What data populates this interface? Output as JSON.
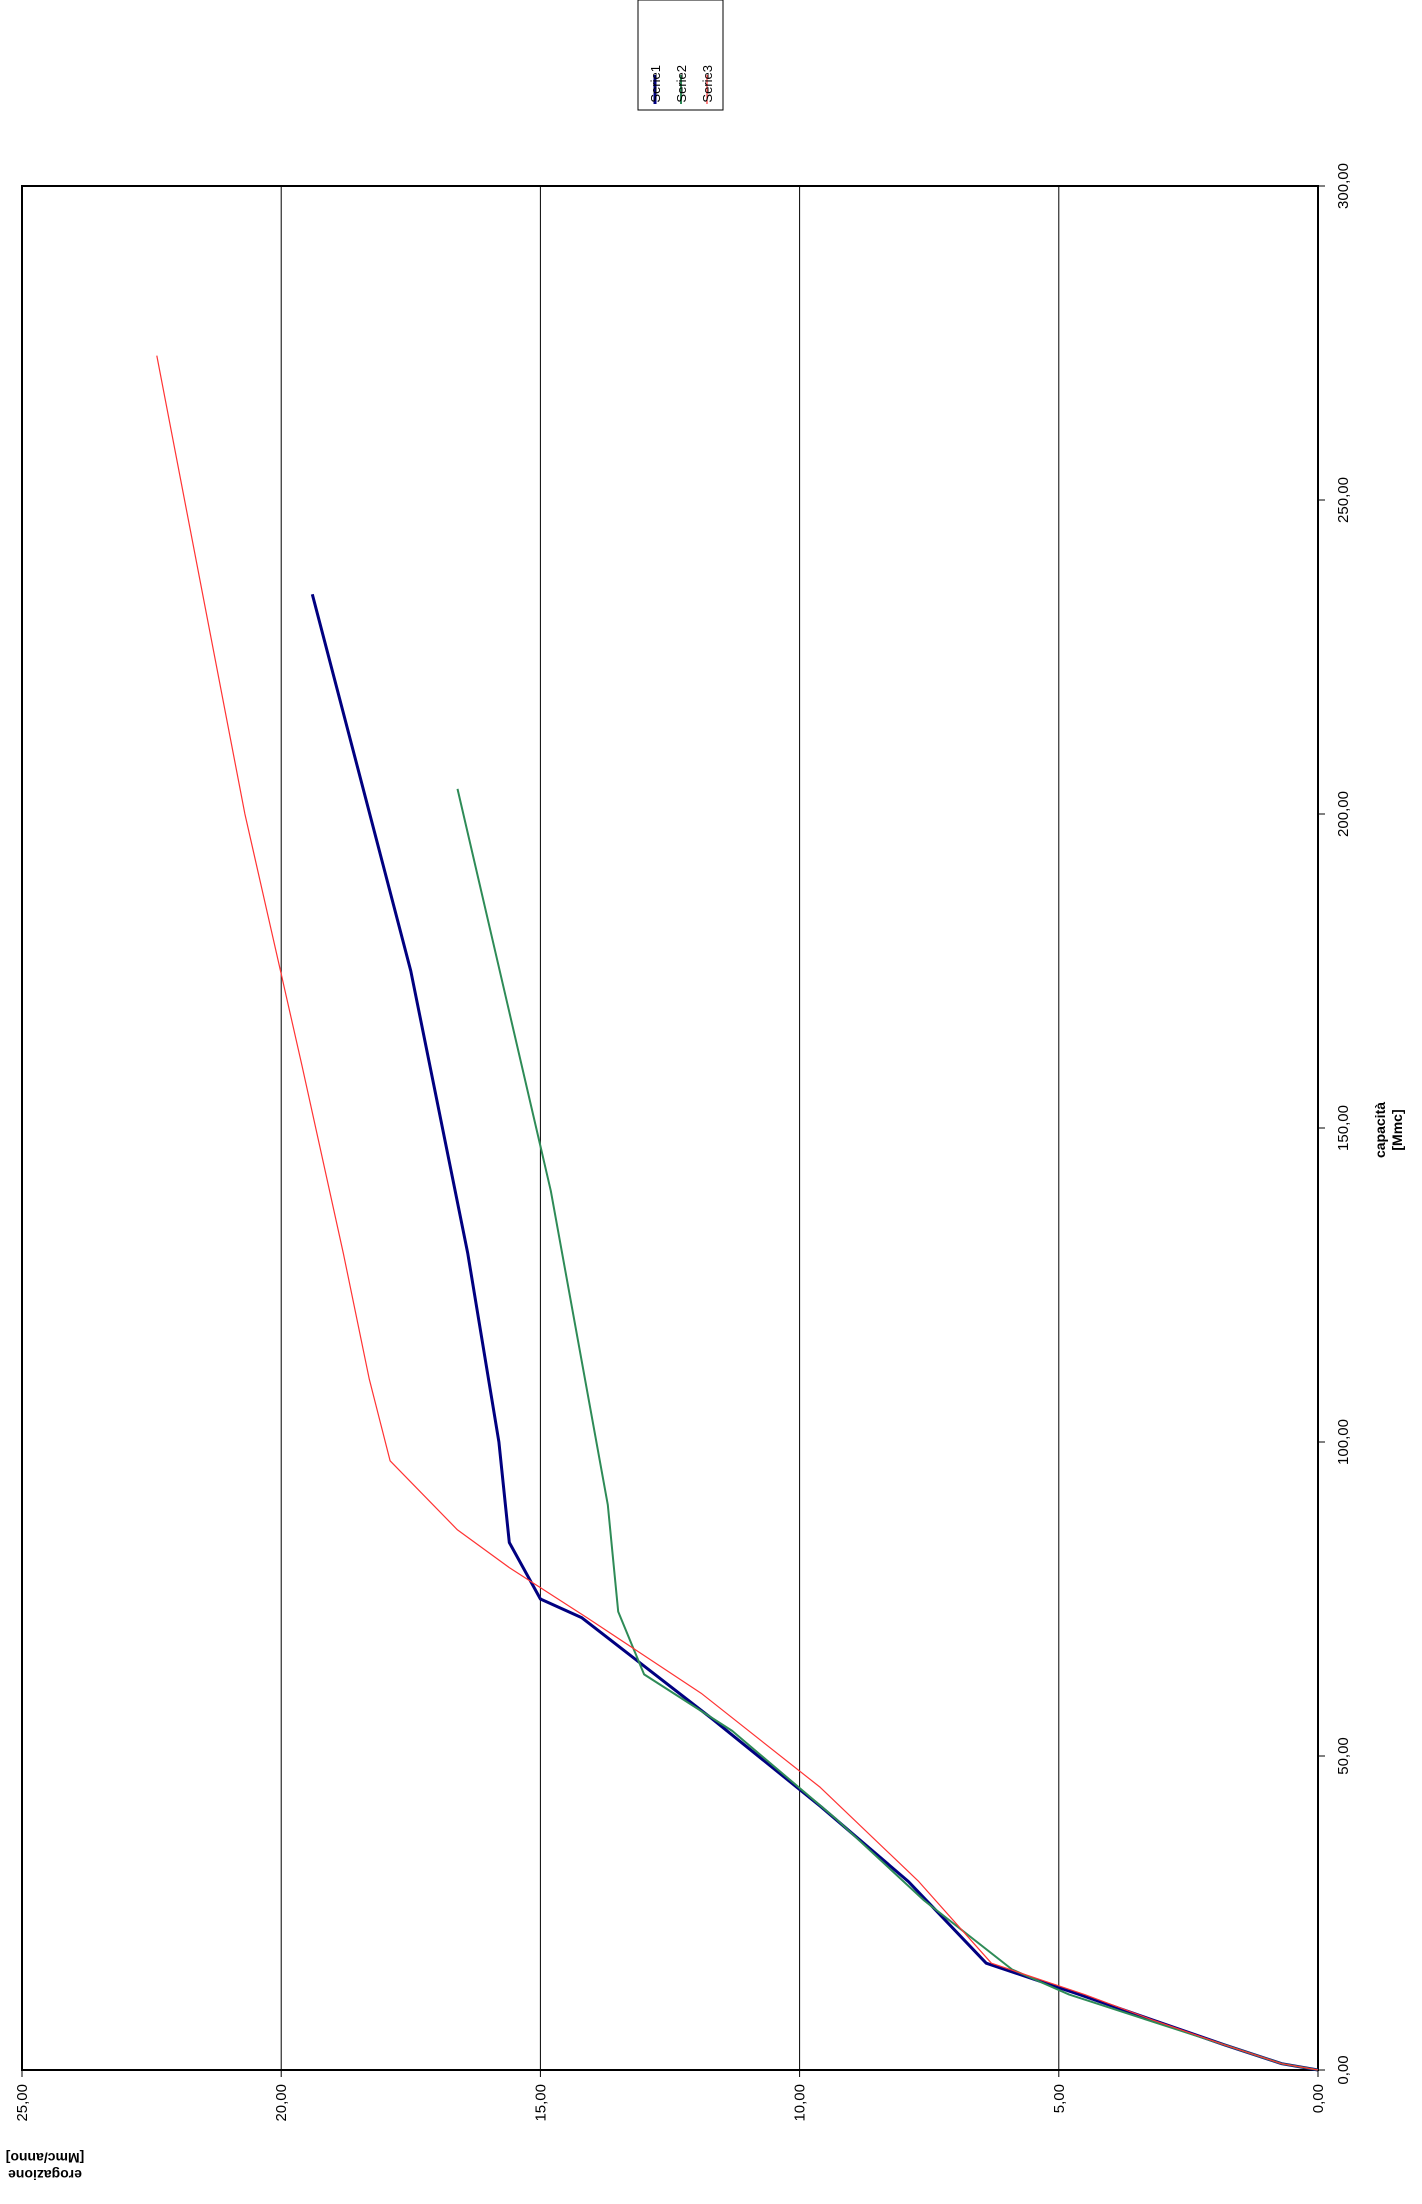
{
  "chart_data": {
    "type": "line",
    "orientation": "rotated-90-ccw",
    "title": "",
    "xlabel": "capacità",
    "xlabel_unit": "[Mmc]",
    "ylabel": "erogazione",
    "ylabel_unit": "[Mmc/anno]",
    "xlim": [
      0,
      300
    ],
    "ylim": [
      0,
      25
    ],
    "x_ticks": [
      "0,00",
      "50,00",
      "100,00",
      "150,00",
      "200,00",
      "250,00",
      "300,00"
    ],
    "y_ticks": [
      "0,00",
      "5,00",
      "10,00",
      "15,00",
      "20,00",
      "25,00"
    ],
    "grid": "horizontal major lines at y ticks",
    "legend_position": "top-right",
    "series": [
      {
        "name": "Serie1",
        "color": "#000080",
        "x": [
          0,
          1,
          4,
          8,
          12,
          17,
          30,
          42,
          56,
          72,
          75,
          84,
          100,
          130,
          175,
          235
        ],
        "y": [
          0,
          0.7,
          1.8,
          3.2,
          4.6,
          6.4,
          7.9,
          9.6,
          11.7,
          14.2,
          15.0,
          15.6,
          15.8,
          16.4,
          17.5,
          19.4
        ]
      },
      {
        "name": "Serie2",
        "color": "#2E8B57",
        "x": [
          0,
          1,
          4,
          8,
          12,
          16,
          27,
          40,
          54,
          63,
          67,
          73,
          90,
          140,
          204
        ],
        "y": [
          0,
          0.7,
          1.8,
          3.3,
          4.8,
          5.9,
          7.6,
          9.3,
          11.3,
          13.0,
          13.2,
          13.5,
          13.7,
          14.8,
          16.6
        ]
      },
      {
        "name": "Serie3",
        "color": "#FF3333",
        "x": [
          0,
          1,
          4,
          8,
          12,
          17,
          30,
          45,
          60,
          72,
          80,
          86,
          97,
          110,
          130,
          160,
          200,
          273
        ],
        "y": [
          0,
          0.7,
          1.8,
          3.2,
          4.5,
          6.3,
          7.7,
          9.6,
          11.9,
          14.1,
          15.6,
          16.6,
          17.9,
          18.3,
          18.8,
          19.6,
          20.7,
          22.4
        ]
      }
    ]
  }
}
